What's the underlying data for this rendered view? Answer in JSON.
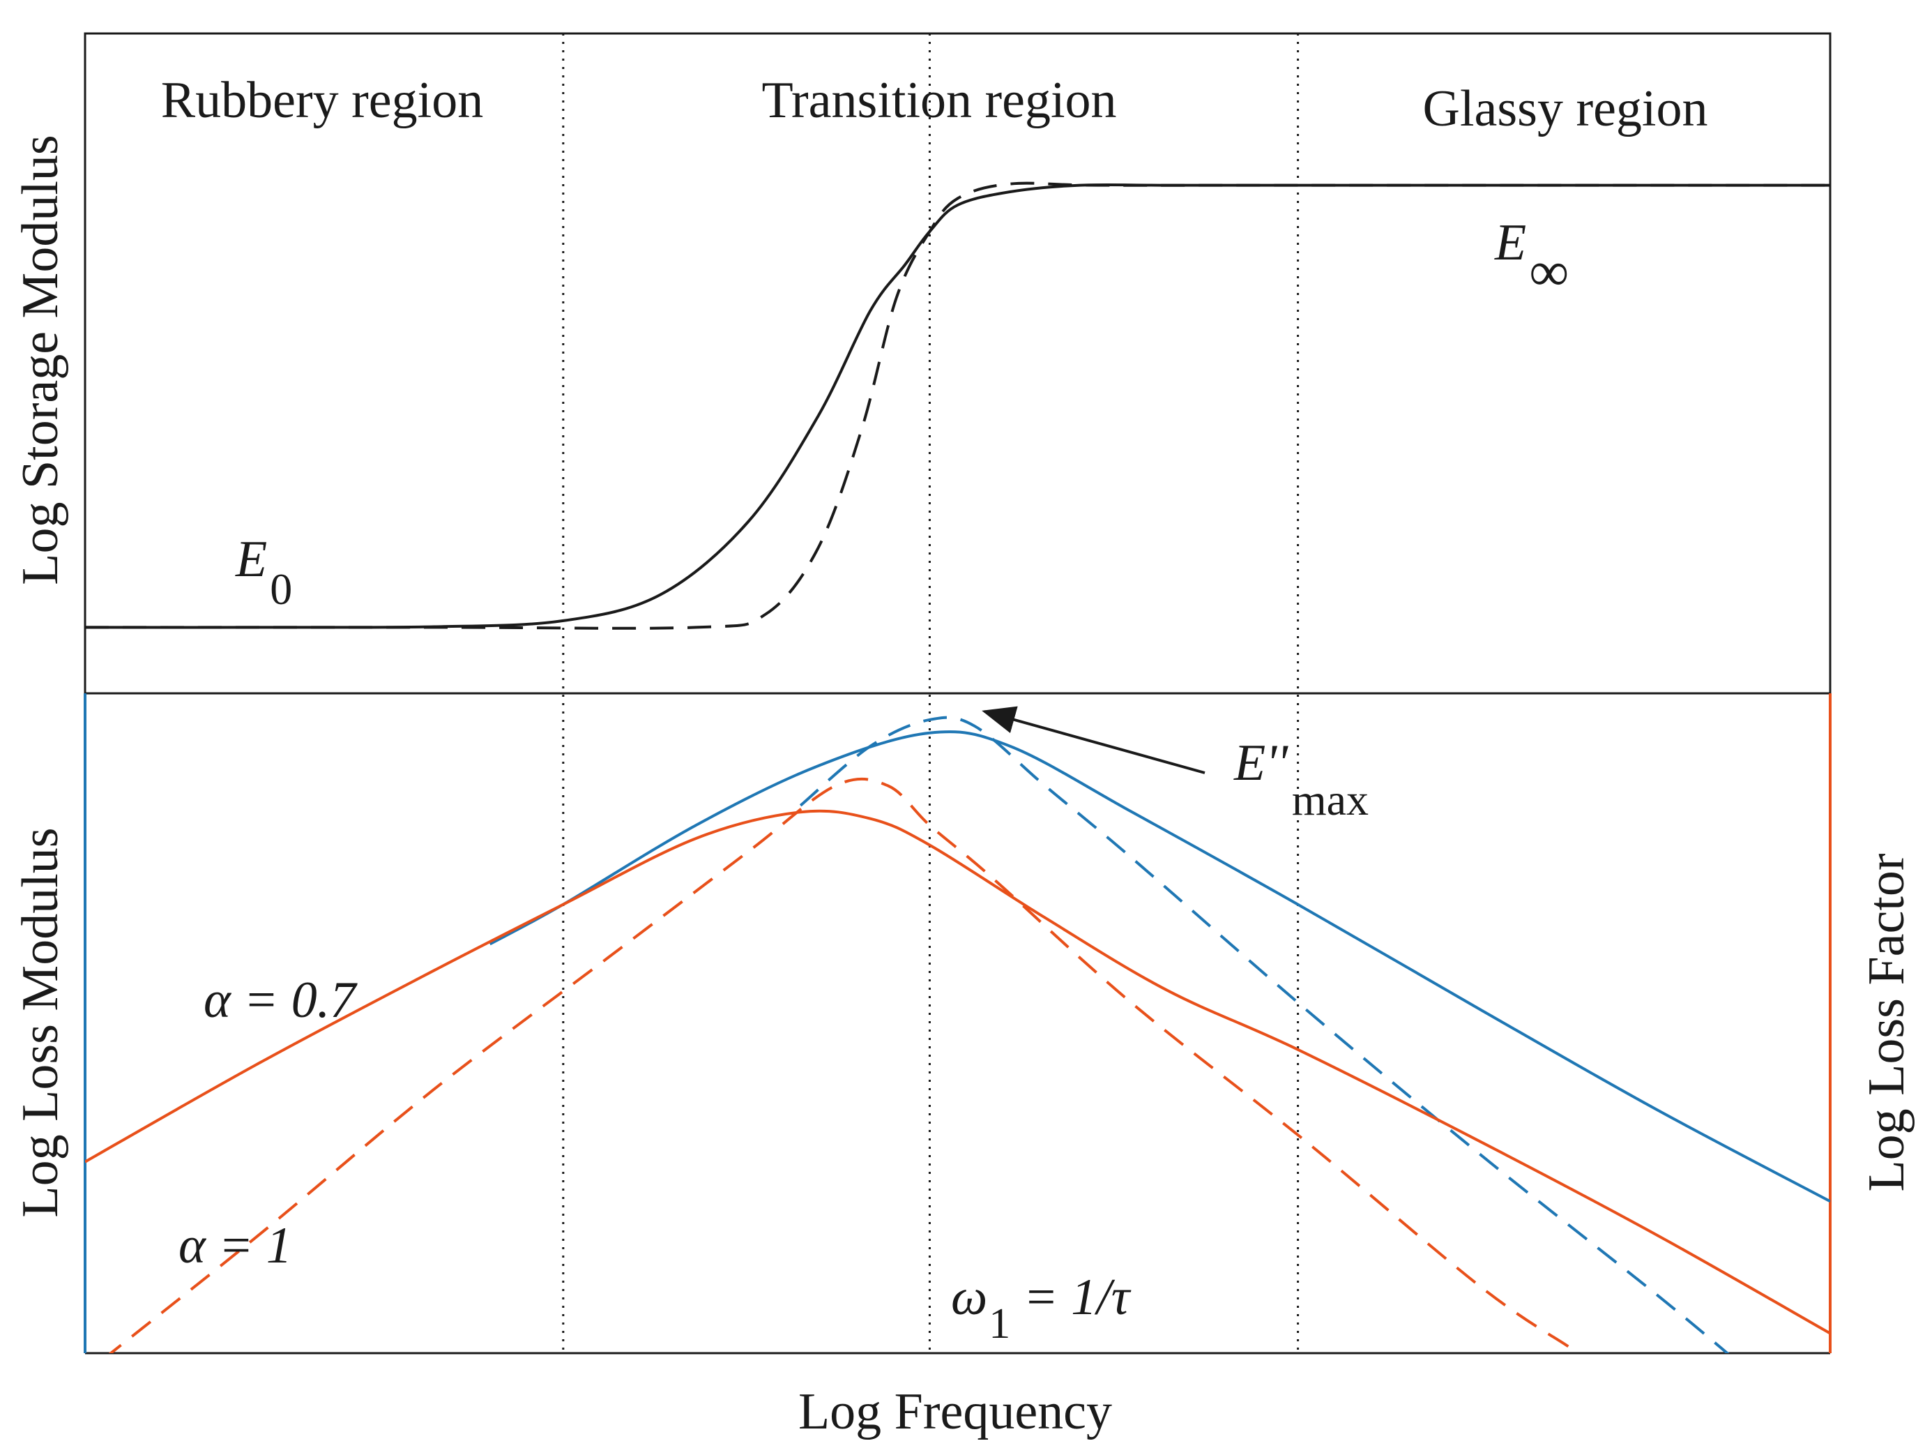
{
  "chart_data": {
    "type": "line",
    "xlabel": "Log Frequency",
    "x_range": [
      0,
      1
    ],
    "colors": {
      "storage": "#1a1a1a",
      "loss_modulus": "#1f77b4",
      "loss_factor": "#e8501a"
    },
    "regions": [
      {
        "label": "Rubbery region"
      },
      {
        "label": "Transition region"
      },
      {
        "label": "Glassy region"
      }
    ],
    "region_boundaries_x": [
      0.274,
      0.484,
      0.695
    ],
    "top_panel": {
      "ylabel": "Log Storage Modulus",
      "y_range": [
        0,
        1
      ],
      "series": [
        {
          "style": "solid",
          "x": [
            0,
            0.1,
            0.2,
            0.274,
            0.33,
            0.38,
            0.42,
            0.45,
            0.47,
            0.484,
            0.5,
            0.53,
            0.57,
            0.62,
            0.7,
            0.85,
            1.0
          ],
          "y": [
            0.1,
            0.1,
            0.101,
            0.11,
            0.15,
            0.26,
            0.42,
            0.58,
            0.65,
            0.7,
            0.74,
            0.76,
            0.77,
            0.77,
            0.77,
            0.77,
            0.77
          ]
        },
        {
          "style": "dashed",
          "x": [
            0,
            0.2,
            0.35,
            0.39,
            0.42,
            0.445,
            0.465,
            0.484,
            0.5,
            0.53,
            0.58,
            0.7,
            1.0
          ],
          "y": [
            0.1,
            0.1,
            0.1,
            0.12,
            0.22,
            0.4,
            0.6,
            0.7,
            0.75,
            0.772,
            0.77,
            0.77,
            0.77
          ]
        }
      ],
      "annotations": [
        {
          "text": "E",
          "sub": "0"
        },
        {
          "text": "E",
          "sub": "∞"
        }
      ]
    },
    "bottom_panel": {
      "ylabel_left": "Log Loss Modulus",
      "ylabel_right": "Log Loss Factor",
      "y_range": [
        0,
        1
      ],
      "series": [
        {
          "style": "solid",
          "color": "loss_modulus",
          "x": [
            0.232,
            0.274,
            0.35,
            0.42,
            0.484,
            0.53,
            0.6,
            0.695,
            0.8,
            0.9,
            1.0
          ],
          "y": [
            0.62,
            0.68,
            0.8,
            0.89,
            0.94,
            0.92,
            0.82,
            0.68,
            0.52,
            0.37,
            0.23
          ]
        },
        {
          "style": "dashed",
          "color": "loss_modulus",
          "x": [
            0.41,
            0.45,
            0.484,
            0.51,
            0.55,
            0.6,
            0.7,
            0.8,
            0.9,
            0.95
          ],
          "y": [
            0.83,
            0.92,
            0.96,
            0.95,
            0.86,
            0.75,
            0.52,
            0.3,
            0.09,
            -0.02
          ]
        },
        {
          "style": "solid",
          "color": "loss_factor",
          "x": [
            0,
            0.1,
            0.2,
            0.274,
            0.35,
            0.41,
            0.45,
            0.484,
            0.55,
            0.62,
            0.695,
            0.8,
            0.9,
            1.0
          ],
          "y": [
            0.29,
            0.44,
            0.58,
            0.68,
            0.78,
            0.82,
            0.81,
            0.77,
            0.66,
            0.55,
            0.46,
            0.32,
            0.18,
            0.03
          ]
        },
        {
          "style": "dashed",
          "color": "loss_factor",
          "x": [
            0.01,
            0.1,
            0.2,
            0.3,
            0.38,
            0.43,
            0.46,
            0.484,
            0.52,
            0.6,
            0.7,
            0.8,
            0.85
          ],
          "y": [
            -0.01,
            0.18,
            0.4,
            0.6,
            0.76,
            0.86,
            0.86,
            0.8,
            0.72,
            0.53,
            0.32,
            0.1,
            0.01
          ]
        }
      ],
      "annotations": [
        {
          "text": "α = 0.7"
        },
        {
          "text": "α = 1"
        },
        {
          "text": "ω",
          "sub": "1",
          "tail": " = 1/τ"
        },
        {
          "text": "E''",
          "sub": "max"
        }
      ]
    }
  }
}
